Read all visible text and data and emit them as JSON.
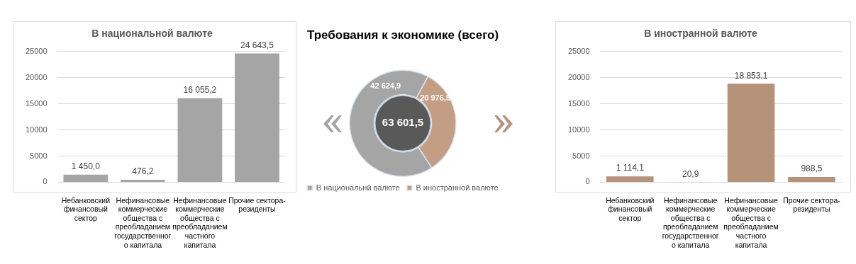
{
  "chart_data": [
    {
      "type": "bar",
      "title": "В национальной валюте",
      "categories": [
        "Небанковский финансовый сектор",
        "Нефинансовые коммерческие общества с преобладанием государственного капитала",
        "Нефинансовые коммерческие общества с преобладанием частного капитала",
        "Прочие сектора-резиденты"
      ],
      "values": [
        1450.0,
        476.2,
        16055.2,
        24643.5
      ],
      "value_labels": [
        "1 450,0",
        "476,2",
        "16 055,2",
        "24 643,5"
      ],
      "color": "#a5a5a5",
      "ylim": [
        0,
        25000
      ],
      "yticks": [
        0,
        5000,
        10000,
        15000,
        20000,
        25000
      ],
      "grid": "y"
    },
    {
      "type": "donut",
      "title": "Требования к экономике (всего)",
      "categories": [
        "В национальнй валюте",
        "В иностранной валюте"
      ],
      "values": [
        42624.9,
        20976.5
      ],
      "value_labels": [
        "42 624,9",
        "20 976,5"
      ],
      "colors": [
        "#a5a5a5",
        "#c49d85"
      ],
      "annotations": [
        "63 601,5"
      ],
      "legend": "bottom"
    },
    {
      "type": "bar",
      "title": "В иностранной валюте",
      "categories": [
        "Небанковский финансовый сектор",
        "Нефинансовые коммерческие общества с преобладанием государственного капитала",
        "Нефинансовые коммерческие общества с преобладанием частного капитала",
        "Прочие сектора-резиденты"
      ],
      "values": [
        1114.1,
        20.9,
        18853.1,
        988.5
      ],
      "value_labels": [
        "1 114,1",
        "20,9",
        "18 853,1",
        "988,5"
      ],
      "color": "#b5937b",
      "ylim": [
        0,
        25000
      ],
      "yticks": [
        0,
        5000,
        10000,
        15000,
        20000,
        25000
      ],
      "grid": "y"
    }
  ]
}
